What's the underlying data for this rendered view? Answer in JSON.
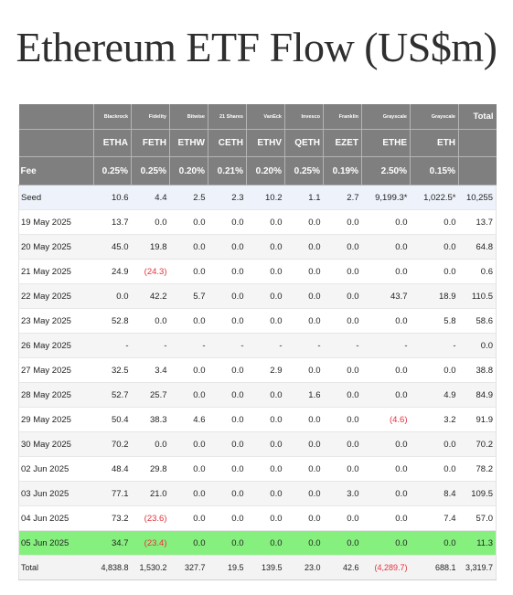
{
  "title": "Ethereum ETF Flow (US$m)",
  "colors": {
    "header_bg": "#7f7f7f",
    "highlight_row": "#86f07f",
    "negative_text": "#e4323c",
    "seed_row": "#eef2fa",
    "stripe_row": "#f5f5f5"
  },
  "table": {
    "issuers": [
      "Blackrock",
      "Fidelity",
      "Bitwise",
      "21 Shares",
      "VanEck",
      "Invesco",
      "Franklin",
      "Grayscale",
      "Grayscale"
    ],
    "total_label": "Total",
    "tickers": [
      "ETHA",
      "FETH",
      "ETHW",
      "CETH",
      "ETHV",
      "QETH",
      "EZET",
      "ETHE",
      "ETH"
    ],
    "fee_label": "Fee",
    "fees": [
      "0.25%",
      "0.25%",
      "0.20%",
      "0.21%",
      "0.20%",
      "0.25%",
      "0.19%",
      "2.50%",
      "0.15%"
    ],
    "rows": [
      {
        "label": "Seed",
        "cells": [
          "10.6",
          "4.4",
          "2.5",
          "2.3",
          "10.2",
          "1.1",
          "2.7",
          "9,199.3*",
          "1,022.5*"
        ],
        "total": "10,255"
      },
      {
        "label": "19 May 2025",
        "cells": [
          "13.7",
          "0.0",
          "0.0",
          "0.0",
          "0.0",
          "0.0",
          "0.0",
          "0.0",
          "0.0"
        ],
        "total": "13.7"
      },
      {
        "label": "20 May 2025",
        "cells": [
          "45.0",
          "19.8",
          "0.0",
          "0.0",
          "0.0",
          "0.0",
          "0.0",
          "0.0",
          "0.0"
        ],
        "total": "64.8"
      },
      {
        "label": "21 May 2025",
        "cells": [
          "24.9",
          "(24.3)",
          "0.0",
          "0.0",
          "0.0",
          "0.0",
          "0.0",
          "0.0",
          "0.0"
        ],
        "total": "0.6"
      },
      {
        "label": "22 May 2025",
        "cells": [
          "0.0",
          "42.2",
          "5.7",
          "0.0",
          "0.0",
          "0.0",
          "0.0",
          "43.7",
          "18.9"
        ],
        "total": "110.5"
      },
      {
        "label": "23 May 2025",
        "cells": [
          "52.8",
          "0.0",
          "0.0",
          "0.0",
          "0.0",
          "0.0",
          "0.0",
          "0.0",
          "5.8"
        ],
        "total": "58.6"
      },
      {
        "label": "26 May 2025",
        "cells": [
          "-",
          "-",
          "-",
          "-",
          "-",
          "-",
          "-",
          "-",
          "-"
        ],
        "total": "0.0"
      },
      {
        "label": "27 May 2025",
        "cells": [
          "32.5",
          "3.4",
          "0.0",
          "0.0",
          "2.9",
          "0.0",
          "0.0",
          "0.0",
          "0.0"
        ],
        "total": "38.8"
      },
      {
        "label": "28 May 2025",
        "cells": [
          "52.7",
          "25.7",
          "0.0",
          "0.0",
          "0.0",
          "1.6",
          "0.0",
          "0.0",
          "4.9"
        ],
        "total": "84.9"
      },
      {
        "label": "29 May 2025",
        "cells": [
          "50.4",
          "38.3",
          "4.6",
          "0.0",
          "0.0",
          "0.0",
          "0.0",
          "(4.6)",
          "3.2"
        ],
        "total": "91.9"
      },
      {
        "label": "30 May 2025",
        "cells": [
          "70.2",
          "0.0",
          "0.0",
          "0.0",
          "0.0",
          "0.0",
          "0.0",
          "0.0",
          "0.0"
        ],
        "total": "70.2"
      },
      {
        "label": "02 Jun 2025",
        "cells": [
          "48.4",
          "29.8",
          "0.0",
          "0.0",
          "0.0",
          "0.0",
          "0.0",
          "0.0",
          "0.0"
        ],
        "total": "78.2"
      },
      {
        "label": "03 Jun 2025",
        "cells": [
          "77.1",
          "21.0",
          "0.0",
          "0.0",
          "0.0",
          "0.0",
          "3.0",
          "0.0",
          "8.4"
        ],
        "total": "109.5"
      },
      {
        "label": "04 Jun 2025",
        "cells": [
          "73.2",
          "(23.6)",
          "0.0",
          "0.0",
          "0.0",
          "0.0",
          "0.0",
          "0.0",
          "7.4"
        ],
        "total": "57.0"
      },
      {
        "label": "05 Jun 2025",
        "cells": [
          "34.7",
          "(23.4)",
          "0.0",
          "0.0",
          "0.0",
          "0.0",
          "0.0",
          "0.0",
          "0.0"
        ],
        "total": "11.3",
        "highlight": true
      }
    ],
    "total_row": {
      "label": "Total",
      "cells": [
        "4,838.8",
        "1,530.2",
        "327.7",
        "19.5",
        "139.5",
        "23.0",
        "42.6",
        "(4,289.7)",
        "688.1"
      ],
      "total": "3,319.7"
    }
  }
}
